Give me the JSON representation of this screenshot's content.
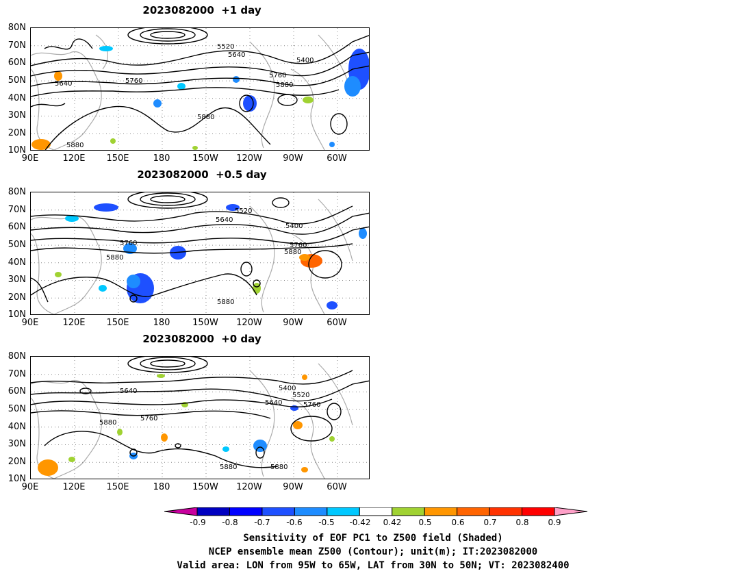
{
  "panels": [
    {
      "title": "2023082000  +1 day"
    },
    {
      "title": "2023082000  +0.5 day"
    },
    {
      "title": "2023082000  +0 day"
    }
  ],
  "lat_labels": [
    "80N",
    "70N",
    "60N",
    "50N",
    "40N",
    "30N",
    "20N",
    "10N"
  ],
  "lon_labels": [
    "90E",
    "120E",
    "150E",
    "180",
    "150W",
    "120W",
    "90W",
    "60W"
  ],
  "contour_labels": {
    "p0": [
      "5520",
      "5640",
      "5400",
      "5760",
      "5880",
      "5640",
      "5760",
      "5880",
      "5880"
    ],
    "p1": [
      "5520",
      "5640",
      "5400",
      "5760",
      "5880",
      "5760",
      "5880",
      "5880"
    ],
    "p2": [
      "5640",
      "5400",
      "5520",
      "5640",
      "5760",
      "5760",
      "5880",
      "5880",
      "5880"
    ]
  },
  "colorbar": {
    "ticks": [
      "-0.9",
      "-0.8",
      "-0.7",
      "-0.6",
      "-0.5",
      "-0.42",
      "0.42",
      "0.5",
      "0.6",
      "0.7",
      "0.8",
      "0.9"
    ],
    "colors": [
      "#0000c0",
      "#0000ff",
      "#1e50ff",
      "#1e8cff",
      "#00c8ff",
      "#ffffff",
      "#a0d232",
      "#ff9600",
      "#ff6400",
      "#ff3200",
      "#ff0000"
    ],
    "under_color": "#c8009e",
    "over_color": "#ffa0c8"
  },
  "caption": {
    "line1": "Sensitivity of EOF PC1 to Z500 field (Shaded)",
    "line2": "NCEP ensemble mean Z500 (Contour); unit(m); IT:2023082000",
    "line3": "Valid area: LON from 95W to 65W, LAT from 30N to 50N; VT: 2023082400"
  }
}
